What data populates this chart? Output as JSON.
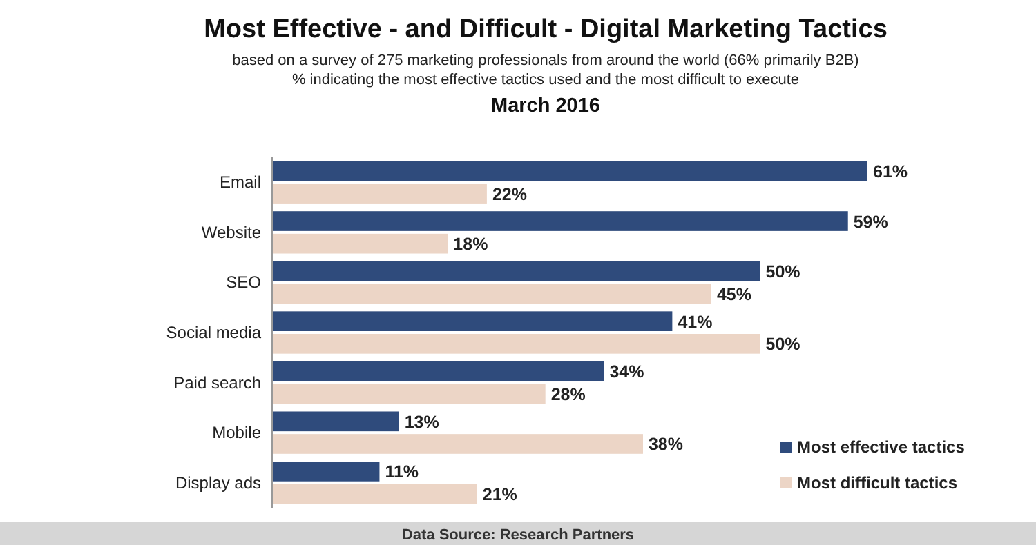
{
  "chart_data": {
    "type": "bar",
    "orientation": "horizontal",
    "title": "Most Effective - and Difficult - Digital Marketing Tactics",
    "subtitle": "based on a survey of 275 marketing professionals from around the world (66% primarily B2B)\n% indicating the most effective tactics used and the most difficult to execute\nMarch 2016",
    "categories": [
      "Email",
      "Website",
      "SEO",
      "Social media",
      "Paid search",
      "Mobile",
      "Display ads"
    ],
    "series": [
      {
        "name": "Most effective tactics",
        "color": "#2f4b7c",
        "values": [
          61,
          59,
          50,
          41,
          34,
          13,
          11
        ],
        "value_labels": [
          "61%",
          "59%",
          "50%",
          "41%",
          "34%",
          "13%",
          "11%"
        ]
      },
      {
        "name": "Most difficult tactics",
        "color": "#ecd5c6",
        "values": [
          22,
          18,
          45,
          50,
          28,
          38,
          21
        ],
        "value_labels": [
          "22%",
          "18%",
          "45%",
          "50%",
          "28%",
          "38%",
          "21%"
        ]
      }
    ],
    "legend": "bottom right",
    "annotations": [
      "Data Source: Research Partners"
    ]
  }
}
